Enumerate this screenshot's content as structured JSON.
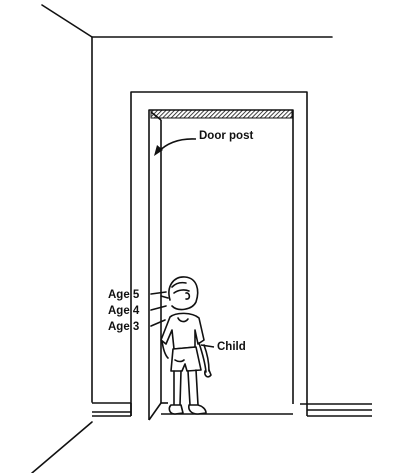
{
  "labels": {
    "door_post": "Door post",
    "child": "Child",
    "age_5": "Age 5",
    "age_4": "Age 4",
    "age_3": "Age 3"
  },
  "colors": {
    "ink": "#111111",
    "paper": "#ffffff"
  }
}
